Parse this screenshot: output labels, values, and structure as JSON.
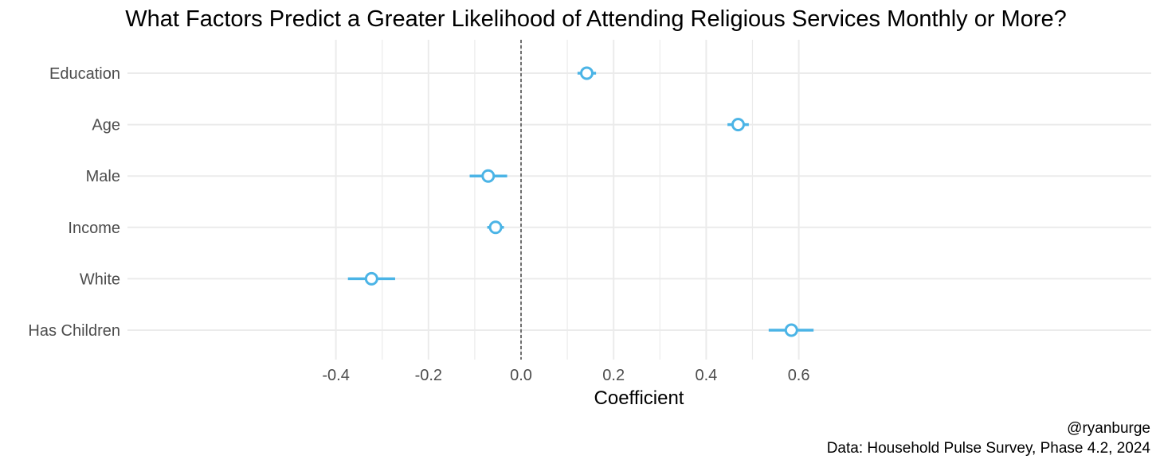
{
  "chart_data": {
    "type": "scatter",
    "subtype": "coefficient-plot",
    "title": "What Factors Predict a Greater Likelihood of Attending Religious Services Monthly or More?",
    "xlabel": "Coefficient",
    "ylabel": "",
    "xlim": [
      -0.42,
      0.68
    ],
    "x_ticks": [
      -0.4,
      -0.2,
      0.0,
      0.2,
      0.4,
      0.6
    ],
    "x_tick_labels": [
      "-0.4",
      "-0.2",
      "0.0",
      "0.2",
      "0.4",
      "0.6"
    ],
    "reference_line": {
      "x": 0,
      "style": "dashed"
    },
    "grid": true,
    "legend": "none",
    "categories": [
      "Education",
      "Age",
      "Male",
      "Income",
      "White",
      "Has Children"
    ],
    "estimates": [
      0.142,
      0.469,
      -0.071,
      -0.055,
      -0.323,
      0.584
    ],
    "lower": [
      0.122,
      0.446,
      -0.111,
      -0.073,
      -0.374,
      0.535
    ],
    "upper": [
      0.162,
      0.492,
      -0.03,
      -0.037,
      -0.272,
      0.632
    ],
    "colors": {
      "point": "#4BB4E6",
      "grid": "#EBEBEB",
      "reference": "#444444",
      "text": "#000000",
      "axis_text": "#4D4D4D"
    }
  },
  "caption": {
    "handle": "@ryanburge",
    "source": "Data: Household Pulse Survey, Phase 4.2, 2024"
  }
}
